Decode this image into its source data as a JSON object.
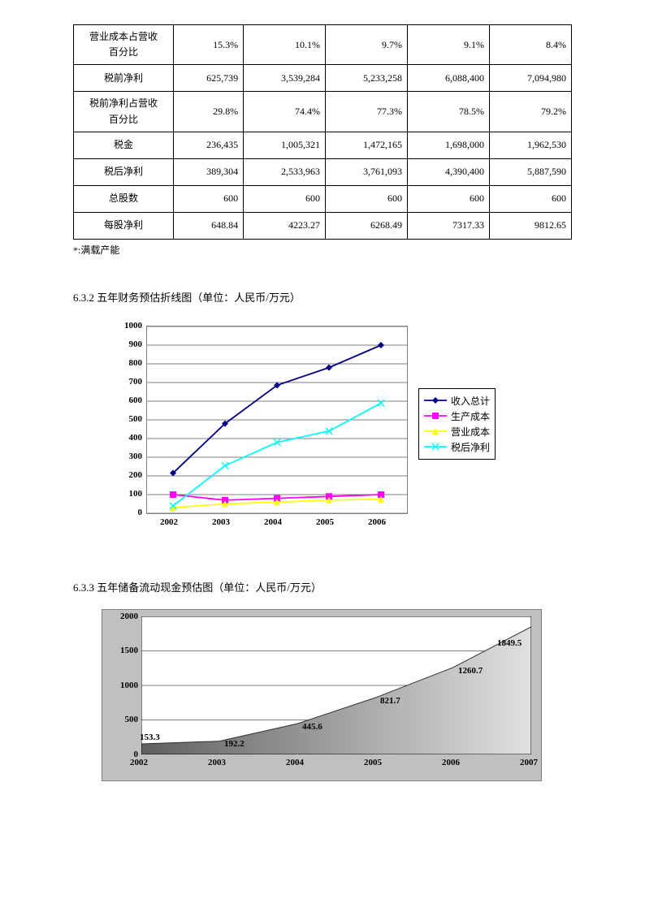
{
  "table": {
    "rows": [
      {
        "label_lines": [
          "营业成本占营收",
          "百分比"
        ],
        "cells": [
          "15.3%",
          "10.1%",
          "9.7%",
          "9.1%",
          "8.4%"
        ],
        "sep": true
      },
      {
        "label_lines": [
          "税前净利"
        ],
        "cells": [
          "625,739",
          "3,539,284",
          "5,233,258",
          "6,088,400",
          "7,094,980"
        ],
        "sep": true
      },
      {
        "label_lines": [
          "税前净利占营收",
          "百分比"
        ],
        "cells": [
          "29.8%",
          "74.4%",
          "77.3%",
          "78.5%",
          "79.2%"
        ],
        "sep": false
      },
      {
        "label_lines": [
          "税金"
        ],
        "cells": [
          "236,435",
          "1,005,321",
          "1,472,165",
          "1,698,000",
          "1,962,530"
        ],
        "sep": true
      },
      {
        "label_lines": [
          "税后净利"
        ],
        "cells": [
          "389,304",
          "2,533,963",
          "3,761,093",
          "4,390,400",
          "5,887,590"
        ],
        "sep": false
      },
      {
        "label_lines": [
          "总股数"
        ],
        "cells": [
          "600",
          "600",
          "600",
          "600",
          "600"
        ],
        "sep": true
      },
      {
        "label_lines": [
          "每股净利"
        ],
        "cells": [
          "648.84",
          "4223.27",
          "6268.49",
          "7317.33",
          "9812.65"
        ],
        "sep": false
      }
    ]
  },
  "footnote": "*:满载产能",
  "section1_title": "6.3.2 五年财务预估折线图（单位：人民币/万元）",
  "section2_title": "6.3.3  五年储备流动现金预估图（单位：人民币/万元）",
  "chart1": {
    "type": "line",
    "categories": [
      "2002",
      "2003",
      "2004",
      "2005",
      "2006"
    ],
    "ylim": [
      0,
      1000
    ],
    "ytick_step": 100,
    "yticks": [
      "0",
      "100",
      "200",
      "300",
      "400",
      "500",
      "600",
      "700",
      "800",
      "900",
      "1000"
    ],
    "grid_color": "#000000",
    "background_color": "#c0c0c0",
    "plot_background": "#ffffff",
    "series": [
      {
        "name": "收入总计",
        "color": "#000080",
        "marker": "diamond",
        "values": [
          215,
          480,
          685,
          780,
          900
        ]
      },
      {
        "name": "生产成本",
        "color": "#ff00ff",
        "marker": "square",
        "values": [
          100,
          70,
          80,
          90,
          100
        ]
      },
      {
        "name": "营业成本",
        "color": "#ffff00",
        "marker": "triangle",
        "values": [
          30,
          50,
          60,
          70,
          75
        ]
      },
      {
        "name": "税后净利",
        "color": "#00ffff",
        "marker": "x",
        "values": [
          40,
          255,
          380,
          440,
          590
        ]
      }
    ],
    "label_fontsize": 11
  },
  "chart2": {
    "type": "area",
    "categories": [
      "2002",
      "2003",
      "2004",
      "2005",
      "2006",
      "2007"
    ],
    "ylim": [
      0,
      2000
    ],
    "ytick_step": 500,
    "yticks": [
      "0",
      "500",
      "1000",
      "1500",
      "2000"
    ],
    "values": [
      153.3,
      192.2,
      445.6,
      821.7,
      1260.7,
      1849.5
    ],
    "data_labels": [
      "153.3",
      "192.2",
      "445.6",
      "821.7",
      "1260.7",
      "1849.5"
    ],
    "fill_gradient_from": "#606060",
    "fill_gradient_to": "#e0e0e0",
    "background_color": "#c0c0c0",
    "plot_background": "#ffffff",
    "grid_color": "#000000",
    "label_fontsize": 11
  }
}
